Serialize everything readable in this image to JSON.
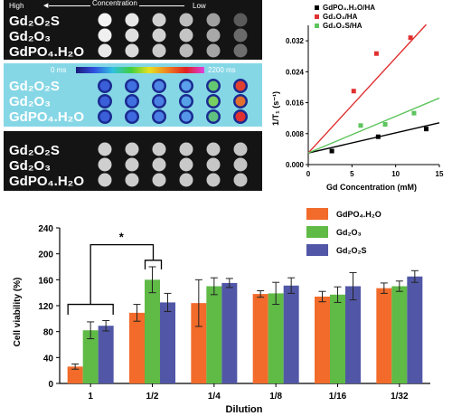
{
  "phantom": {
    "concentration_label": "Concentration",
    "high_label": "High",
    "low_label": "Low",
    "colorbar_min": "0 ms",
    "colorbar_max": "2200 ms",
    "panels": [
      {
        "rows": [
          "Gd₂O₂S",
          "Gd₂O₃",
          "GdPO₄.H₂O"
        ]
      },
      {
        "rows": [
          "Gd₂O₂S",
          "Gd₂O₃",
          "GdPO₄.H₂O"
        ]
      },
      {
        "rows": [
          "Gd₂O₂S",
          "Gd₂O₃",
          "GdPO₄.H₂O"
        ]
      }
    ]
  },
  "chart_data": [
    {
      "type": "scatter",
      "xlabel": "Gd Concentration (mM)",
      "ylabel": "1/T₁ (s⁻¹)",
      "xlim": [
        0,
        15
      ],
      "ylim": [
        0,
        0.036
      ],
      "xticks": [
        "0",
        "5",
        "10",
        "15"
      ],
      "yticks": [
        "0.000",
        "0.008",
        "0.016",
        "0.024",
        "0.032"
      ],
      "legend_position": "top-left",
      "series": [
        {
          "name": "GdPO₄.H₂O/HA",
          "color": "#000000",
          "x": [
            2.7,
            8,
            13.5
          ],
          "y": [
            0.0035,
            0.0072,
            0.0092
          ],
          "fit": [
            [
              0,
              0.003
            ],
            [
              15,
              0.0108
            ]
          ]
        },
        {
          "name": "Gd₂O₃/HA",
          "color": "#e03030",
          "x": [
            5.2,
            7.8,
            11.7
          ],
          "y": [
            0.019,
            0.0287,
            0.0328
          ],
          "fit": [
            [
              0,
              0.003
            ],
            [
              13.5,
              0.0362
            ]
          ]
        },
        {
          "name": "Gd₂O₂S/HA",
          "color": "#5ec45e",
          "x": [
            6,
            8.8,
            12.1
          ],
          "y": [
            0.0101,
            0.0104,
            0.0133
          ],
          "fit": [
            [
              0,
              0.003
            ],
            [
              15,
              0.0172
            ]
          ]
        }
      ]
    },
    {
      "type": "bar",
      "xlabel": "Dilution",
      "ylabel": "Cell viability (%)",
      "ylim": [
        0,
        240
      ],
      "yticks": [
        "0",
        "40",
        "80",
        "120",
        "160",
        "200",
        "240"
      ],
      "categories": [
        "1",
        "1/2",
        "1/4",
        "1/8",
        "1/16",
        "1/32"
      ],
      "legend_position": "top-right",
      "significance": "*",
      "series": [
        {
          "name": "GdPO₄.H₂O",
          "color": "#f26b2a",
          "values": [
            26,
            109,
            124,
            138,
            134,
            147
          ],
          "errors": [
            4,
            13,
            36,
            5,
            8,
            8
          ]
        },
        {
          "name": "Gd₂O₃",
          "color": "#5fba46",
          "values": [
            82,
            160,
            150,
            139,
            137,
            150
          ],
          "errors": [
            13,
            20,
            13,
            17,
            12,
            8
          ]
        },
        {
          "name": "Gd₂O₂S",
          "color": "#5157a6",
          "values": [
            89,
            125,
            155,
            151,
            150,
            165
          ],
          "errors": [
            8,
            14,
            7,
            12,
            21,
            9
          ]
        }
      ]
    }
  ]
}
